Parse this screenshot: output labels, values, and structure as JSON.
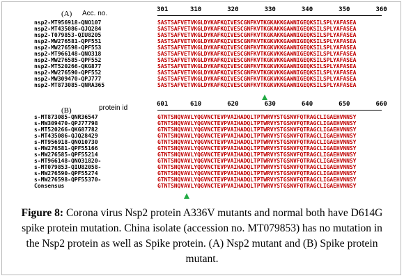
{
  "panel_a": {
    "label": "(A)",
    "column_header": "Acc. no.",
    "ruler": [
      "301",
      "310",
      "320",
      "330",
      "340",
      "350",
      "360"
    ],
    "rows": [
      {
        "name": "nsp2-MT956918-QNO107",
        "seq": "SASTSAFVETVKGLDYKAFKQIVESCGNFKVTKGKAKKGAWNIGEQKSILSPLYAFASEA"
      },
      {
        "name": "nsp2-MT435086-QJQ284",
        "seq": "SASTSAFVETVKGLDYKAFKQIVESCGNFKVTKGKAKKGAWNIGEQKSILSPLYAFASEA"
      },
      {
        "name": "nsp2-T079853-QIU8205",
        "seq": "SASTSAFVETVKGLDYKAFKQIVESCGNFKVTKGKAKKGAWNIGEQKSILSPLYAFASEA"
      },
      {
        "name": "nsp2-MW276581-QPF551",
        "seq": "SASTSAFVETVKGLDYKAFKQIVESCGNFKVTKGKVKKGAWNIGEQKSILSPLYAFASEA"
      },
      {
        "name": "nsp2-MW276598-QPF553",
        "seq": "SASTSAFVETVKGLDYKAFKQIVESCGNFKVTKGKVKKGAWNIGEQKSILSPLYAFASEA"
      },
      {
        "name": "nsp2-MT966148-QNO318",
        "seq": "SASTSAFVETVKGLDYKAFKQIVESCGNFKVTKGKVKKGAWNIGEQKSILSPLYAFASEA"
      },
      {
        "name": "nsp2-MW276585-QPF552",
        "seq": "SASTSAFVETVKGLDYKAFKQIVESCGNFKVTKGKVKKGAWNIGEQKSILSPLYAFASEA"
      },
      {
        "name": "nsp2-MT520266-QKG877",
        "seq": "SASTSAFVETVKGLDYKAFKQIVESCGNFKVTKGKVKKGAWNIGEQKSILSPLYAFASEA"
      },
      {
        "name": "nsp2-MW276590-QPF552",
        "seq": "SASTSAFVETVKGLDYKAFKQIVESCGNFKVTKGKVKKGAWNIGEQKSILSPLYAFASEA"
      },
      {
        "name": "nsp2-MW309470-QPJ777",
        "seq": "SASTSAFVETVKGLDYKAFKQIVESCGNFKVTKGKVKKGAWNIGEQKSILSPLYAFASEA"
      },
      {
        "name": "nsp2-MT873085-QNRA365",
        "seq": "SASTSAFVETVKGLDYKAFKQIVESCGNFKVTKGKVKKGAWNIGEQKSILSPLYAFASEA"
      }
    ]
  },
  "panel_b": {
    "label": "(B)",
    "column_header": "protein id",
    "ruler": [
      "601",
      "610",
      "620",
      "630",
      "640",
      "650",
      "660"
    ],
    "rows": [
      {
        "name": "s-MT873085-QNR36547",
        "seq": "GTNTSNQVAVLYQGVNCTEVPVAIHADQLTPTWRVYSTGSNVFQTRAGCLIGAEHVNNSY"
      },
      {
        "name": "s-MW309470-QPJ77798",
        "seq": "GTNTSNQVAVLYQGVNCTEVPVAIHADQLTPTWRVYSTGSNVFQTRAGCLIGAEHVNNSY"
      },
      {
        "name": "s-MT520266-QKG87782",
        "seq": "GTNTSNQVAVLYQGVNCTEVPVAIHADQLTPTWRVYSTGSNVFQTRAGCLIGAEHVNNSY"
      },
      {
        "name": "s-MT435086-QJQ28429",
        "seq": "GTNTSNQVAVLYQGVNCTEVPVAIHADQLTPTWRVYSTGSNVFQTRAGCLIGAEHVNNSY"
      },
      {
        "name": "s-MT956918-QNO10730",
        "seq": "GTNTSNQVAVLYQGVNCTEVPVAIHADQLTPTWRVYSTGSNVFQTRAGCLIGAEHVNNSY"
      },
      {
        "name": "s-MW276581-QPF55166",
        "seq": "GTNTSNQVAVLYQGVNCTEVPVAIHADQLTPTWRVYSTGSNVFQTRAGCLIGAEHVNNSY"
      },
      {
        "name": "s-MW276585-QPF55214",
        "seq": "GTNTSNQVAVLYQGVNCTEVPVAIHADQLTPTWRVYSTGSNVFQTRAGCLIGAEHVNNSY"
      },
      {
        "name": "s-MT966148-QNO31820-",
        "seq": "GTNTSNQVAVLYQGVNCTEVPVAIHADQLTPTWRVYSTGSNVFQTRAGCLIGAEHVNNSY"
      },
      {
        "name": "s-MT079853-QIU82058-",
        "seq": "GTNTSNQVAVLYQDVNCTEVPVAIHADQLTPTWRVYSTGSNVFQTRAGCLIGAEHVNNSY"
      },
      {
        "name": "s-MW276590-QPF55274",
        "seq": "GTNTSNQVAVLYQGVNCTEVPVAIHADQLTPTWRVYSTGSNVFQTRAGCLIGAEHVNNSY"
      },
      {
        "name": "s-MW276598-QPF55370-",
        "seq": "GTNTSNQVAVLYQGVNCTEVPVAIHADQLTPTWRVYSTGSNVFQTRAGCLIGAEHVNNSY"
      },
      {
        "name": "Consensus",
        "seq": "GTNTSNQVAVLYQGVNCTEVPVAIHADQLTPTWRVYSTGSNVFQTRAGCLIGAEHVNNSY"
      }
    ]
  },
  "caption": {
    "label": "Figure 8:",
    "text": "Corona virus Nsp2 protein A336V mutants and normal both have D614G spike protein mutation. China isolate (accession no. MT079853)  has no mutation in the Nsp2 protein as well as Spike protein. (A) Nsp2 mutant and (B) Spike protein mutant."
  },
  "colors": {
    "residue": "#c00000",
    "marker": "#22aa44",
    "names": "#000000"
  }
}
